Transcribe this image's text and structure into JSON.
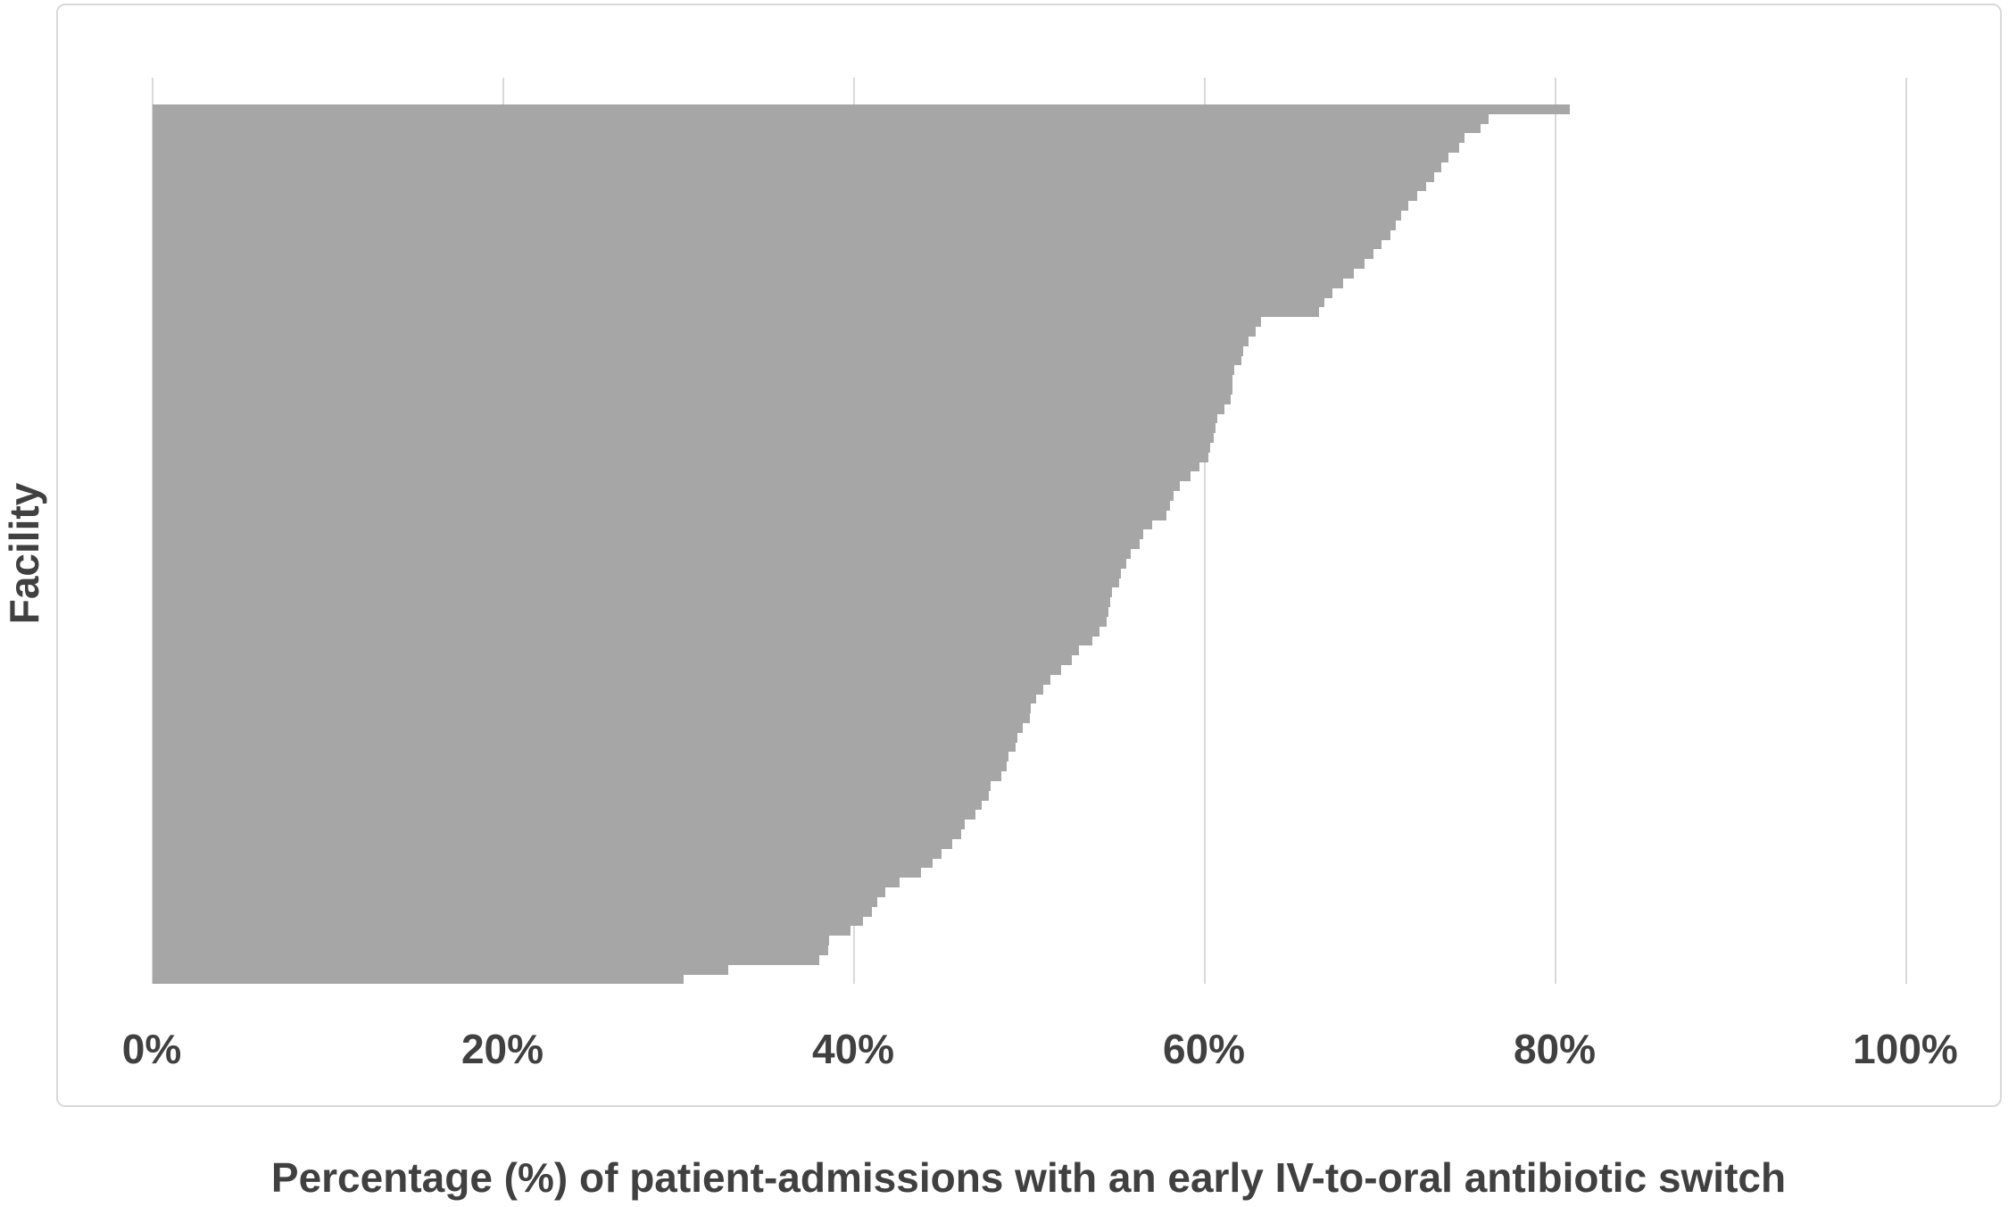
{
  "chart_data": {
    "type": "bar",
    "orientation": "horizontal",
    "title": "",
    "xlabel": "Percentage (%) of patient-admissions with an early IV-to-oral antibiotic switch",
    "ylabel": "Facility",
    "x_ticks": [
      "0%",
      "20%",
      "40%",
      "60%",
      "80%",
      "100%"
    ],
    "x_tick_values": [
      0,
      20,
      40,
      60,
      80,
      100
    ],
    "xlim": [
      0,
      100
    ],
    "grid": "vertical",
    "legend": "none",
    "bar_color": "#a6a6a6",
    "gridline_color": "#d9d9d9",
    "frame_border_color": "#d9d9d9",
    "text_color": "#404040",
    "values": [
      80.8,
      76.2,
      75.7,
      74.8,
      74.5,
      73.9,
      73.5,
      73.1,
      72.6,
      72.1,
      71.6,
      71.2,
      70.9,
      70.6,
      70.1,
      69.6,
      69.1,
      68.5,
      67.9,
      67.3,
      66.8,
      66.5,
      63.2,
      62.9,
      62.5,
      62.2,
      62.1,
      61.7,
      61.6,
      61.6,
      61.5,
      61.1,
      60.7,
      60.6,
      60.5,
      60.3,
      60.2,
      59.7,
      59.2,
      58.6,
      58.2,
      58.0,
      57.8,
      57.0,
      56.5,
      56.3,
      55.8,
      55.5,
      55.2,
      55.1,
      54.7,
      54.6,
      54.5,
      54.4,
      54.0,
      53.6,
      52.8,
      52.4,
      51.8,
      51.2,
      50.8,
      50.4,
      50.1,
      50.0,
      49.6,
      49.3,
      49.2,
      48.8,
      48.7,
      48.4,
      47.8,
      47.7,
      47.3,
      46.9,
      46.3,
      46.1,
      45.6,
      45.0,
      44.5,
      43.8,
      42.6,
      41.8,
      41.3,
      41.0,
      40.5,
      39.8,
      38.6,
      38.5,
      38.0,
      32.8,
      30.3
    ]
  }
}
